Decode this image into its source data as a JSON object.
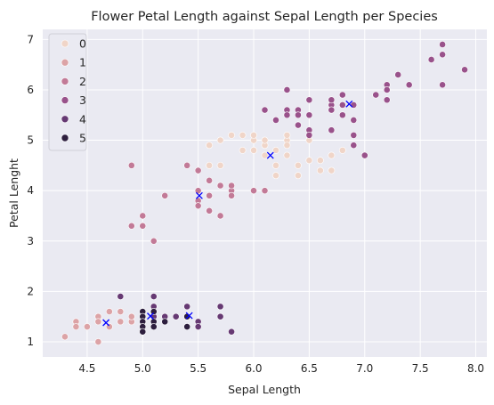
{
  "chart_data": {
    "type": "scatter",
    "title": "Flower Petal Length against Sepal Length per Species",
    "xlabel": "Sepal Length",
    "ylabel": "Petal Lenght",
    "xlim": [
      4.1,
      8.1
    ],
    "ylim": [
      0.7,
      7.2
    ],
    "xticks": [
      4.5,
      5.0,
      5.5,
      6.0,
      6.5,
      7.0,
      7.5,
      8.0
    ],
    "xtick_labels": [
      "4.5",
      "5.0",
      "5.5",
      "6.0",
      "6.5",
      "7.0",
      "7.5",
      "8.0"
    ],
    "yticks": [
      1,
      2,
      3,
      4,
      5,
      6,
      7
    ],
    "ytick_labels": [
      "1",
      "2",
      "3",
      "4",
      "5",
      "6",
      "7"
    ],
    "grid": true,
    "legend_position": "top-left",
    "background": "#eaeaf2",
    "gridcolor": "#ffffff",
    "center_marker_color": "#0000ff",
    "series": [
      {
        "name": "0",
        "color": "#f0d5c8",
        "points": [
          [
            5.6,
            4.9
          ],
          [
            5.7,
            4.5
          ],
          [
            5.8,
            5.1
          ],
          [
            5.9,
            5.1
          ],
          [
            6.0,
            5.0
          ],
          [
            6.0,
            4.8
          ],
          [
            6.1,
            4.9
          ],
          [
            6.2,
            4.8
          ],
          [
            6.3,
            5.0
          ],
          [
            6.3,
            4.9
          ],
          [
            6.3,
            5.1
          ],
          [
            6.4,
            5.3
          ],
          [
            6.4,
            4.5
          ],
          [
            6.5,
            4.6
          ],
          [
            6.6,
            4.6
          ],
          [
            6.7,
            4.7
          ],
          [
            6.7,
            4.4
          ],
          [
            6.8,
            4.8
          ],
          [
            6.1,
            5.0
          ],
          [
            6.2,
            4.5
          ],
          [
            6.3,
            4.7
          ],
          [
            6.4,
            4.3
          ],
          [
            6.6,
            4.4
          ],
          [
            6.9,
            4.9
          ],
          [
            5.9,
            4.8
          ],
          [
            6.0,
            5.1
          ],
          [
            6.1,
            4.7
          ],
          [
            6.2,
            4.3
          ],
          [
            5.6,
            4.5
          ],
          [
            5.7,
            5.0
          ],
          [
            6.5,
            5.0
          ]
        ]
      },
      {
        "name": "1",
        "color": "#dca3a6",
        "points": [
          [
            4.3,
            1.1
          ],
          [
            4.4,
            1.4
          ],
          [
            4.4,
            1.3
          ],
          [
            4.5,
            1.3
          ],
          [
            4.6,
            1.5
          ],
          [
            4.6,
            1.4
          ],
          [
            4.6,
            1.0
          ],
          [
            4.7,
            1.3
          ],
          [
            4.7,
            1.6
          ],
          [
            4.8,
            1.4
          ],
          [
            4.8,
            1.6
          ],
          [
            4.9,
            1.4
          ],
          [
            4.9,
            1.5
          ],
          [
            5.0,
            1.4
          ],
          [
            5.0,
            1.6
          ]
        ]
      },
      {
        "name": "2",
        "color": "#c27a97",
        "points": [
          [
            4.9,
            4.5
          ],
          [
            4.9,
            3.3
          ],
          [
            5.0,
            3.5
          ],
          [
            5.0,
            3.3
          ],
          [
            5.1,
            3.0
          ],
          [
            5.2,
            3.9
          ],
          [
            5.4,
            4.5
          ],
          [
            5.5,
            4.0
          ],
          [
            5.5,
            3.8
          ],
          [
            5.5,
            3.7
          ],
          [
            5.6,
            3.9
          ],
          [
            5.6,
            3.6
          ],
          [
            5.7,
            4.1
          ],
          [
            5.7,
            3.5
          ],
          [
            5.8,
            4.0
          ],
          [
            5.8,
            3.9
          ],
          [
            5.8,
            4.1
          ],
          [
            6.0,
            4.0
          ],
          [
            6.1,
            4.0
          ],
          [
            5.6,
            4.2
          ],
          [
            5.5,
            4.4
          ]
        ]
      },
      {
        "name": "3",
        "color": "#99528b",
        "points": [
          [
            6.1,
            5.6
          ],
          [
            6.3,
            6.0
          ],
          [
            6.3,
            5.6
          ],
          [
            6.4,
            5.6
          ],
          [
            6.4,
            5.5
          ],
          [
            6.4,
            5.3
          ],
          [
            6.5,
            5.8
          ],
          [
            6.5,
            5.5
          ],
          [
            6.5,
            5.2
          ],
          [
            6.5,
            5.1
          ],
          [
            6.7,
            5.7
          ],
          [
            6.7,
            5.8
          ],
          [
            6.7,
            5.6
          ],
          [
            6.7,
            5.2
          ],
          [
            6.8,
            5.5
          ],
          [
            6.8,
            5.9
          ],
          [
            6.9,
            5.7
          ],
          [
            6.9,
            5.4
          ],
          [
            6.9,
            5.1
          ],
          [
            6.9,
            4.9
          ],
          [
            7.0,
            4.7
          ],
          [
            7.1,
            5.9
          ],
          [
            7.2,
            6.1
          ],
          [
            7.2,
            6.0
          ],
          [
            7.2,
            5.8
          ],
          [
            7.3,
            6.3
          ],
          [
            7.4,
            6.1
          ],
          [
            7.6,
            6.6
          ],
          [
            7.7,
            6.9
          ],
          [
            7.7,
            6.7
          ],
          [
            7.7,
            6.1
          ],
          [
            7.9,
            6.4
          ],
          [
            6.2,
            5.4
          ],
          [
            6.3,
            5.5
          ],
          [
            6.8,
            5.7
          ]
        ]
      },
      {
        "name": "4",
        "color": "#663973",
        "points": [
          [
            4.8,
            1.9
          ],
          [
            5.1,
            1.9
          ],
          [
            5.1,
            1.7
          ],
          [
            5.4,
            1.7
          ],
          [
            5.5,
            1.4
          ],
          [
            5.5,
            1.3
          ],
          [
            5.7,
            1.7
          ],
          [
            5.7,
            1.5
          ],
          [
            5.8,
            1.2
          ],
          [
            5.1,
            1.5
          ],
          [
            5.2,
            1.5
          ],
          [
            5.3,
            1.5
          ]
        ]
      },
      {
        "name": "5",
        "color": "#2d1e3e",
        "points": [
          [
            5.0,
            1.6
          ],
          [
            5.0,
            1.5
          ],
          [
            5.0,
            1.4
          ],
          [
            5.0,
            1.3
          ],
          [
            5.0,
            1.2
          ],
          [
            5.1,
            1.4
          ],
          [
            5.1,
            1.3
          ],
          [
            5.2,
            1.4
          ],
          [
            5.4,
            1.5
          ],
          [
            5.4,
            1.3
          ],
          [
            5.4,
            1.5
          ],
          [
            5.1,
            1.6
          ]
        ]
      }
    ],
    "centers": [
      [
        4.67,
        1.38
      ],
      [
        5.07,
        1.51
      ],
      [
        5.42,
        1.52
      ],
      [
        5.51,
        3.9
      ],
      [
        6.15,
        4.7
      ],
      [
        6.86,
        5.72
      ]
    ]
  }
}
